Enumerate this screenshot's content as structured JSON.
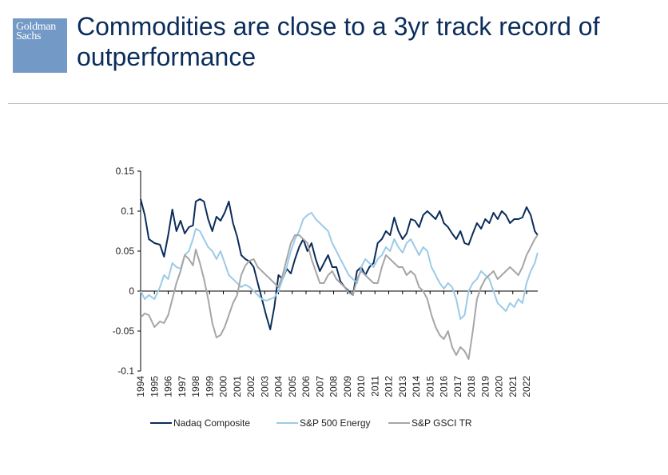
{
  "header": {
    "logo_line1": "Goldman",
    "logo_line2": "Sachs",
    "title_line1": "Commodities are close to a 3yr track record of",
    "title_line2": "outperformance"
  },
  "chart_data": {
    "type": "line",
    "title": "",
    "xlabel": "",
    "ylabel": "",
    "ylim": [
      -0.1,
      0.15
    ],
    "yticks": [
      0.15,
      0.1,
      0.05,
      0,
      -0.05,
      -0.1
    ],
    "ytick_labels": [
      "0.15",
      "0.1",
      "0.05",
      "0",
      "-0.05",
      "-0.1"
    ],
    "xlim": [
      1994,
      2022.8
    ],
    "xtick_labels": [
      "1994",
      "1995",
      "1996",
      "1997",
      "1998",
      "1999",
      "2000",
      "2001",
      "2002",
      "2003",
      "2004",
      "2005",
      "2006",
      "2007",
      "2008",
      "2009",
      "2010",
      "2011",
      "2012",
      "2013",
      "2014",
      "2015",
      "2016",
      "2017",
      "2018",
      "2019",
      "2020",
      "2021",
      "2022"
    ],
    "legend_position": "bottom",
    "grid": false,
    "series": [
      {
        "name": "Nadaq Composite",
        "color": "#0b2d5b",
        "x": [
          1994,
          1994.3,
          1994.6,
          1995.0,
          1995.4,
          1995.7,
          1996.0,
          1996.3,
          1996.6,
          1996.9,
          1997.2,
          1997.5,
          1997.8,
          1998.0,
          1998.3,
          1998.6,
          1998.9,
          1999.2,
          1999.5,
          1999.8,
          2000.1,
          2000.4,
          2000.7,
          2001.0,
          2001.3,
          2001.6,
          2001.9,
          2002.2,
          2002.5,
          2002.8,
          2003.1,
          2003.4,
          2003.7,
          2004.0,
          2004.3,
          2004.6,
          2004.9,
          2005.2,
          2005.5,
          2005.8,
          2006.1,
          2006.4,
          2006.7,
          2007.0,
          2007.3,
          2007.6,
          2007.9,
          2008.2,
          2008.5,
          2008.8,
          2009.1,
          2009.4,
          2009.7,
          2010.0,
          2010.3,
          2010.6,
          2010.9,
          2011.2,
          2011.5,
          2011.8,
          2012.1,
          2012.4,
          2012.7,
          2013.0,
          2013.3,
          2013.6,
          2013.9,
          2014.2,
          2014.5,
          2014.8,
          2015.1,
          2015.4,
          2015.7,
          2016.0,
          2016.3,
          2016.6,
          2016.9,
          2017.2,
          2017.5,
          2017.8,
          2018.1,
          2018.4,
          2018.7,
          2019.0,
          2019.3,
          2019.6,
          2019.9,
          2020.2,
          2020.5,
          2020.8,
          2021.1,
          2021.4,
          2021.7,
          2022.0,
          2022.3,
          2022.6,
          2022.8
        ],
        "values": [
          0.115,
          0.095,
          0.065,
          0.06,
          0.058,
          0.043,
          0.07,
          0.102,
          0.075,
          0.088,
          0.072,
          0.08,
          0.082,
          0.112,
          0.115,
          0.112,
          0.09,
          0.075,
          0.093,
          0.088,
          0.098,
          0.112,
          0.085,
          0.068,
          0.045,
          0.04,
          0.037,
          0.03,
          0.01,
          -0.01,
          -0.03,
          -0.048,
          -0.02,
          0.02,
          0.015,
          0.028,
          0.022,
          0.04,
          0.055,
          0.065,
          0.05,
          0.06,
          0.04,
          0.025,
          0.035,
          0.045,
          0.03,
          0.03,
          0.012,
          0.005,
          0.0,
          -0.005,
          0.025,
          0.03,
          0.02,
          0.03,
          0.035,
          0.06,
          0.065,
          0.075,
          0.07,
          0.092,
          0.075,
          0.065,
          0.072,
          0.09,
          0.088,
          0.08,
          0.095,
          0.1,
          0.095,
          0.09,
          0.1,
          0.085,
          0.08,
          0.072,
          0.065,
          0.075,
          0.06,
          0.058,
          0.072,
          0.085,
          0.078,
          0.09,
          0.085,
          0.098,
          0.09,
          0.1,
          0.095,
          0.085,
          0.09,
          0.09,
          0.092,
          0.105,
          0.095,
          0.075,
          0.07
        ]
      },
      {
        "name": "S&P 500 Energy",
        "color": "#9ccbe8",
        "x": [
          1994,
          1994.3,
          1994.6,
          1995.0,
          1995.4,
          1995.7,
          1996.0,
          1996.3,
          1996.6,
          1996.9,
          1997.2,
          1997.5,
          1997.8,
          1998.0,
          1998.3,
          1998.6,
          1998.9,
          1999.2,
          1999.5,
          1999.8,
          2000.1,
          2000.4,
          2000.7,
          2001.0,
          2001.3,
          2001.6,
          2001.9,
          2002.2,
          2002.5,
          2002.8,
          2003.1,
          2003.4,
          2003.7,
          2004.0,
          2004.3,
          2004.6,
          2004.9,
          2005.2,
          2005.5,
          2005.8,
          2006.1,
          2006.4,
          2006.7,
          2007.0,
          2007.3,
          2007.6,
          2007.9,
          2008.2,
          2008.5,
          2008.8,
          2009.1,
          2009.4,
          2009.7,
          2010.0,
          2010.3,
          2010.6,
          2010.9,
          2011.2,
          2011.5,
          2011.8,
          2012.1,
          2012.4,
          2012.7,
          2013.0,
          2013.3,
          2013.6,
          2013.9,
          2014.2,
          2014.5,
          2014.8,
          2015.1,
          2015.4,
          2015.7,
          2016.0,
          2016.3,
          2016.6,
          2016.9,
          2017.2,
          2017.5,
          2017.8,
          2018.1,
          2018.4,
          2018.7,
          2019.0,
          2019.3,
          2019.6,
          2019.9,
          2020.2,
          2020.5,
          2020.8,
          2021.1,
          2021.4,
          2021.7,
          2022.0,
          2022.3,
          2022.6,
          2022.8
        ],
        "values": [
          0.0,
          -0.01,
          -0.005,
          -0.01,
          0.005,
          0.02,
          0.015,
          0.035,
          0.03,
          0.028,
          0.045,
          0.05,
          0.065,
          0.078,
          0.075,
          0.065,
          0.055,
          0.05,
          0.04,
          0.05,
          0.035,
          0.02,
          0.015,
          0.01,
          0.005,
          0.008,
          0.005,
          0.0,
          -0.005,
          -0.01,
          -0.012,
          -0.01,
          -0.008,
          0.0,
          0.015,
          0.03,
          0.05,
          0.065,
          0.075,
          0.09,
          0.095,
          0.098,
          0.09,
          0.085,
          0.08,
          0.075,
          0.06,
          0.05,
          0.04,
          0.03,
          0.02,
          0.015,
          0.01,
          0.03,
          0.04,
          0.035,
          0.03,
          0.04,
          0.045,
          0.055,
          0.05,
          0.065,
          0.055,
          0.048,
          0.06,
          0.065,
          0.055,
          0.045,
          0.055,
          0.05,
          0.03,
          0.02,
          0.01,
          0.003,
          0.01,
          0.005,
          -0.01,
          -0.035,
          -0.03,
          0.0,
          0.01,
          0.015,
          0.025,
          0.02,
          0.015,
          0.0,
          -0.015,
          -0.02,
          -0.025,
          -0.015,
          -0.02,
          -0.01,
          -0.015,
          0.01,
          0.025,
          0.035,
          0.048
        ]
      },
      {
        "name": "S&P GSCI TR",
        "color": "#a6a6a6",
        "x": [
          1994,
          1994.3,
          1994.6,
          1995.0,
          1995.4,
          1995.7,
          1996.0,
          1996.3,
          1996.6,
          1996.9,
          1997.2,
          1997.5,
          1997.8,
          1998.0,
          1998.3,
          1998.6,
          1998.9,
          1999.2,
          1999.5,
          1999.8,
          2000.1,
          2000.4,
          2000.7,
          2001.0,
          2001.3,
          2001.6,
          2001.9,
          2002.2,
          2002.5,
          2002.8,
          2003.1,
          2003.4,
          2003.7,
          2004.0,
          2004.3,
          2004.6,
          2004.9,
          2005.2,
          2005.5,
          2005.8,
          2006.1,
          2006.4,
          2006.7,
          2007.0,
          2007.3,
          2007.6,
          2007.9,
          2008.2,
          2008.5,
          2008.8,
          2009.1,
          2009.4,
          2009.7,
          2010.0,
          2010.3,
          2010.6,
          2010.9,
          2011.2,
          2011.5,
          2011.8,
          2012.1,
          2012.4,
          2012.7,
          2013.0,
          2013.3,
          2013.6,
          2013.9,
          2014.2,
          2014.5,
          2014.8,
          2015.1,
          2015.4,
          2015.7,
          2016.0,
          2016.3,
          2016.6,
          2016.9,
          2017.2,
          2017.5,
          2017.8,
          2018.1,
          2018.4,
          2018.7,
          2019.0,
          2019.3,
          2019.6,
          2019.9,
          2020.2,
          2020.5,
          2020.8,
          2021.1,
          2021.4,
          2021.7,
          2022.0,
          2022.3,
          2022.6,
          2022.8
        ],
        "values": [
          -0.033,
          -0.028,
          -0.03,
          -0.045,
          -0.038,
          -0.04,
          -0.03,
          -0.01,
          0.01,
          0.025,
          0.045,
          0.04,
          0.032,
          0.052,
          0.035,
          0.015,
          -0.01,
          -0.04,
          -0.058,
          -0.055,
          -0.045,
          -0.03,
          -0.015,
          -0.005,
          0.02,
          0.032,
          0.038,
          0.04,
          0.03,
          0.025,
          0.02,
          0.015,
          0.01,
          0.005,
          0.02,
          0.04,
          0.06,
          0.07,
          0.07,
          0.065,
          0.06,
          0.04,
          0.025,
          0.01,
          0.01,
          0.02,
          0.025,
          0.015,
          0.01,
          0.005,
          -0.002,
          -0.005,
          0.015,
          0.025,
          0.02,
          0.015,
          0.01,
          0.01,
          0.03,
          0.045,
          0.04,
          0.035,
          0.03,
          0.03,
          0.02,
          0.025,
          0.02,
          0.005,
          0.0,
          -0.01,
          -0.03,
          -0.045,
          -0.055,
          -0.06,
          -0.05,
          -0.07,
          -0.08,
          -0.07,
          -0.075,
          -0.085,
          -0.05,
          -0.01,
          0.005,
          0.015,
          0.02,
          0.025,
          0.015,
          0.02,
          0.025,
          0.03,
          0.025,
          0.02,
          0.03,
          0.045,
          0.055,
          0.065,
          0.07
        ]
      }
    ]
  }
}
